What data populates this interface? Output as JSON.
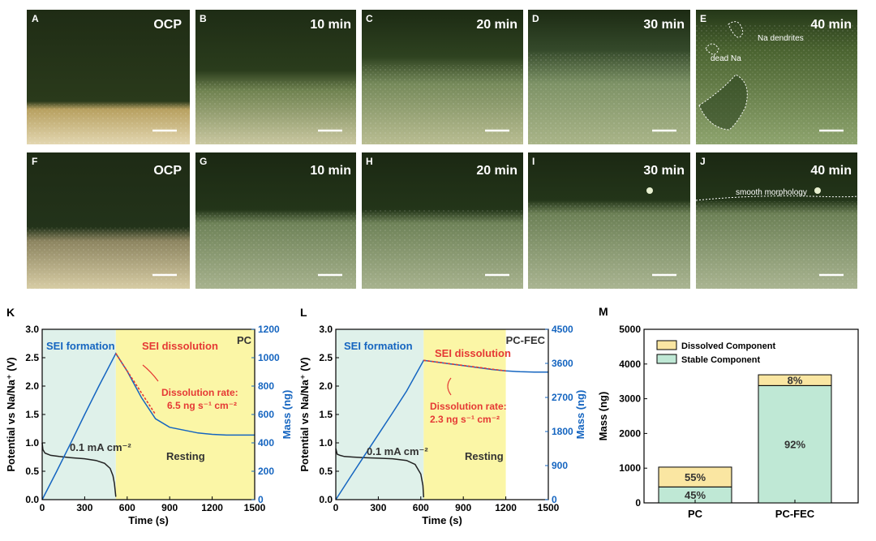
{
  "micrographs": {
    "row1": [
      {
        "letter": "A",
        "time": "OCP"
      },
      {
        "letter": "B",
        "time": "10 min"
      },
      {
        "letter": "C",
        "time": "20 min"
      },
      {
        "letter": "D",
        "time": "30 min"
      },
      {
        "letter": "E",
        "time": "40 min"
      }
    ],
    "row2": [
      {
        "letter": "F",
        "time": "OCP"
      },
      {
        "letter": "G",
        "time": "10 min"
      },
      {
        "letter": "H",
        "time": "20 min"
      },
      {
        "letter": "I",
        "time": "30 min"
      },
      {
        "letter": "J",
        "time": "40 min"
      }
    ],
    "annotations": {
      "dead_na": "dead Na",
      "na_dendrites": "Na dendrites",
      "smooth": "smooth morphology"
    },
    "colors": {
      "dark": "#1b2a12",
      "mid": "#3c5224",
      "light": "#8f9a6c",
      "bright": "#d8d0a8",
      "gold": "#b8a468"
    }
  },
  "chart_data": [
    {
      "id": "K",
      "type": "line",
      "title": "PC",
      "xlabel": "Time (s)",
      "ylabel": "Potential vs Na/Na⁺ (V)",
      "y2label": "Mass (ng)",
      "xlim": [
        0,
        1500
      ],
      "ylim": [
        0,
        3.0
      ],
      "y2lim": [
        0,
        1200
      ],
      "xticks": [
        "0",
        "300",
        "600",
        "900",
        "1200",
        "1500"
      ],
      "yticks": [
        "0.0",
        "0.5",
        "1.0",
        "1.5",
        "2.0",
        "2.5",
        "3.0"
      ],
      "y2ticks": [
        "0",
        "200",
        "400",
        "600",
        "800",
        "1000",
        "1200"
      ],
      "regions": [
        {
          "name": "SEI formation",
          "x0": 0,
          "x1": 520,
          "color": "#dff1ea"
        },
        {
          "name": "SEI dissolution",
          "x0": 520,
          "x1": 1500,
          "color": "#fbf6a6"
        }
      ],
      "labels": {
        "formation": "SEI formation",
        "dissolution": "SEI dissolution",
        "rate_title": "Dissolution rate:",
        "rate_value": "6.5 ng s⁻¹ cm⁻²",
        "current": "0.1 mA cm⁻²",
        "resting": "Resting"
      },
      "series": [
        {
          "name": "Potential",
          "axis": "left",
          "color": "#222222",
          "x": [
            0,
            5,
            20,
            60,
            120,
            200,
            300,
            380,
            440,
            480,
            500,
            510,
            520
          ],
          "y": [
            1.0,
            0.88,
            0.82,
            0.78,
            0.76,
            0.74,
            0.72,
            0.69,
            0.64,
            0.55,
            0.42,
            0.28,
            0.05
          ]
        },
        {
          "name": "Mass",
          "axis": "right",
          "color": "#1565c0",
          "x": [
            0,
            100,
            200,
            300,
            400,
            520,
            600,
            700,
            800,
            900,
            1000,
            1100,
            1200,
            1300,
            1400,
            1500
          ],
          "y": [
            0,
            195,
            395,
            600,
            800,
            1030,
            905,
            720,
            570,
            510,
            490,
            470,
            460,
            455,
            455,
            455
          ]
        },
        {
          "name": "Linear fit",
          "axis": "right",
          "color": "#e53935",
          "dashed": true,
          "x": [
            520,
            800
          ],
          "y": [
            1030,
            600
          ]
        }
      ]
    },
    {
      "id": "L",
      "type": "line",
      "title": "PC-FEC",
      "xlabel": "Time (s)",
      "ylabel": "Potential vs Na/Na⁺ (V)",
      "y2label": "Mass (ng)",
      "xlim": [
        0,
        1500
      ],
      "ylim": [
        0,
        3.0
      ],
      "y2lim": [
        0,
        4500
      ],
      "xticks": [
        "0",
        "300",
        "600",
        "900",
        "1200",
        "1500"
      ],
      "yticks": [
        "0.0",
        "0.5",
        "1.0",
        "1.5",
        "2.0",
        "2.5",
        "3.0"
      ],
      "y2ticks": [
        "0",
        "900",
        "1800",
        "2700",
        "3600",
        "4500"
      ],
      "regions": [
        {
          "name": "SEI formation",
          "x0": 0,
          "x1": 620,
          "color": "#dff1ea"
        },
        {
          "name": "SEI dissolution",
          "x0": 620,
          "x1": 1200,
          "color": "#fbf6a6"
        }
      ],
      "labels": {
        "formation": "SEI formation",
        "dissolution": "SEI dissolution",
        "rate_title": "Dissolution rate:",
        "rate_value": "2.3 ng s⁻¹ cm⁻²",
        "current": "0.1 mA cm⁻²",
        "resting": "Resting"
      },
      "series": [
        {
          "name": "Potential",
          "axis": "left",
          "color": "#222222",
          "x": [
            0,
            10,
            30,
            60,
            120,
            200,
            300,
            400,
            500,
            560,
            600,
            615,
            620
          ],
          "y": [
            0.9,
            0.8,
            0.78,
            0.76,
            0.75,
            0.74,
            0.73,
            0.72,
            0.69,
            0.62,
            0.45,
            0.25,
            0.04
          ]
        },
        {
          "name": "Mass",
          "axis": "right",
          "color": "#1565c0",
          "x": [
            0,
            100,
            200,
            300,
            400,
            500,
            620,
            700,
            800,
            900,
            1000,
            1100,
            1200,
            1300,
            1400,
            1500
          ],
          "y": [
            0,
            580,
            1150,
            1720,
            2290,
            2870,
            3680,
            3640,
            3590,
            3540,
            3490,
            3440,
            3400,
            3380,
            3370,
            3370
          ]
        },
        {
          "name": "Linear fit",
          "axis": "right",
          "color": "#e53935",
          "dashed": true,
          "x": [
            620,
            1200
          ],
          "y": [
            3680,
            3400
          ]
        }
      ]
    },
    {
      "id": "M",
      "type": "bar",
      "stacked": true,
      "ylabel": "Mass (ng)",
      "ylim": [
        0,
        5000
      ],
      "yticks": [
        "0",
        "1000",
        "2000",
        "3000",
        "4000",
        "5000"
      ],
      "categories": [
        "PC",
        "PC-FEC"
      ],
      "legend_position": "top-left",
      "series": [
        {
          "name": "Stable Component",
          "color": "#bfe8d5",
          "values": [
            460,
            3380
          ],
          "labels": [
            "45%",
            "92%"
          ]
        },
        {
          "name": "Dissolved Component",
          "color": "#fae6a2",
          "values": [
            570,
            310
          ],
          "labels": [
            "55%",
            "8%"
          ]
        }
      ]
    }
  ]
}
